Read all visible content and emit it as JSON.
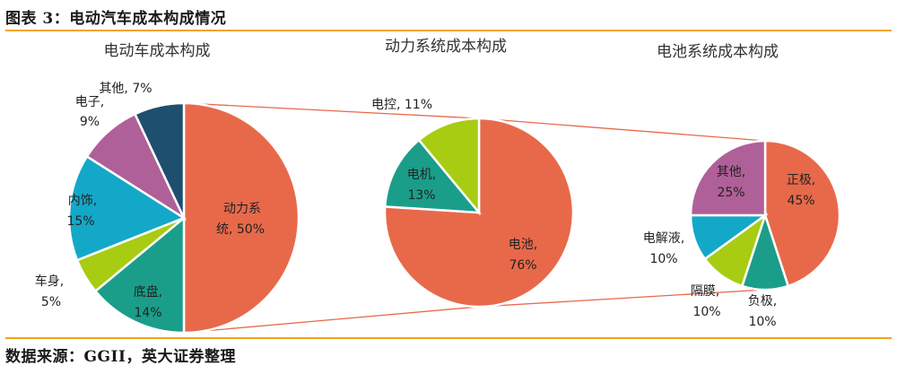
{
  "figure": {
    "title": "图表 3：电动汽车成本构成情况",
    "source": "数据来源：GGII，英大证券整理"
  },
  "chart_data": [
    {
      "type": "pie",
      "title": "电动车成本构成",
      "slices": [
        {
          "label": "动力系统",
          "value": 50,
          "value_text": "50%",
          "color": "#e8694a"
        },
        {
          "label": "底盘",
          "value": 14,
          "value_text": "14%",
          "color": "#1a9e8a"
        },
        {
          "label": "车身",
          "value": 5,
          "value_text": "5%",
          "color": "#a8cc12"
        },
        {
          "label": "内饰",
          "value": 15,
          "value_text": "15%",
          "color": "#14a8c8"
        },
        {
          "label": "电子",
          "value": 9,
          "value_text": "9%",
          "color": "#b06098"
        },
        {
          "label": "其他",
          "value": 7,
          "value_text": "7%",
          "color": "#1e4f6e"
        }
      ]
    },
    {
      "type": "pie",
      "title": "动力系统成本构成",
      "slices": [
        {
          "label": "电池",
          "value": 76,
          "value_text": "76%",
          "color": "#e8694a"
        },
        {
          "label": "电机",
          "value": 13,
          "value_text": "13%",
          "color": "#1a9e8a"
        },
        {
          "label": "电控",
          "value": 11,
          "value_text": "11%",
          "color": "#a8cc12"
        }
      ]
    },
    {
      "type": "pie",
      "title": "电池系统成本构成",
      "slices": [
        {
          "label": "正极",
          "value": 45,
          "value_text": "45%",
          "color": "#e8694a"
        },
        {
          "label": "负极",
          "value": 10,
          "value_text": "10%",
          "color": "#1a9e8a"
        },
        {
          "label": "隔膜",
          "value": 10,
          "value_text": "10%",
          "color": "#a8cc12"
        },
        {
          "label": "电解液",
          "value": 10,
          "value_text": "10%",
          "color": "#14a8c8"
        },
        {
          "label": "其他",
          "value": 25,
          "value_text": "25%",
          "color": "#b06098"
        }
      ]
    }
  ],
  "connector_color": "#e8694a"
}
